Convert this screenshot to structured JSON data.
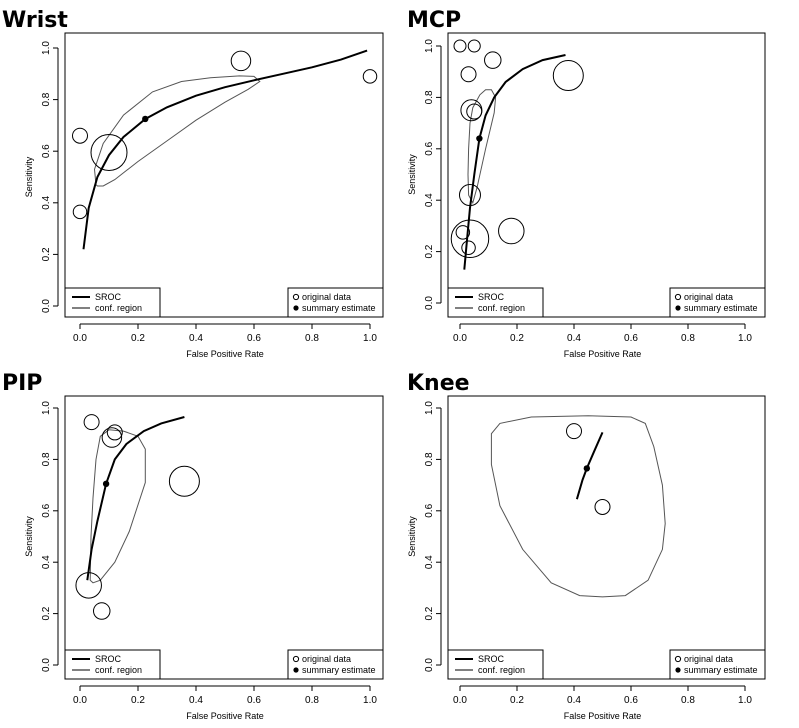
{
  "figure": {
    "xlabel": "False Positive Rate",
    "ylabel": "Sensitivity",
    "xticks": [
      "0.0",
      "0.2",
      "0.4",
      "0.6",
      "0.8",
      "1.0"
    ],
    "yticks": [
      "0.0",
      "0.2",
      "0.4",
      "0.6",
      "0.8",
      "1.0"
    ],
    "legend_left": [
      {
        "label": "SROC",
        "style": "thick-line"
      },
      {
        "label": "conf. region",
        "style": "thin-line"
      }
    ],
    "legend_right": [
      {
        "label": "original data",
        "style": "open-circle"
      },
      {
        "label": "summary estimate",
        "style": "filled-circle"
      }
    ],
    "line_color": "#000000",
    "region_color": "#555555"
  },
  "chart_data": [
    {
      "type": "scatter",
      "title": "Wrist",
      "xlim": [
        0,
        1
      ],
      "ylim": [
        0,
        1
      ],
      "original_data": [
        {
          "x": 0.0,
          "y": 0.66,
          "weight": 1.0
        },
        {
          "x": 0.0,
          "y": 0.365,
          "weight": 0.9
        },
        {
          "x": 0.1,
          "y": 0.595,
          "weight": 2.4
        },
        {
          "x": 0.555,
          "y": 0.95,
          "weight": 1.3
        },
        {
          "x": 1.0,
          "y": 0.89,
          "weight": 0.9
        }
      ],
      "summary_estimate": {
        "x": 0.225,
        "y": 0.725
      },
      "sroc": [
        [
          0.012,
          0.22
        ],
        [
          0.03,
          0.38
        ],
        [
          0.06,
          0.5
        ],
        [
          0.1,
          0.585
        ],
        [
          0.15,
          0.655
        ],
        [
          0.225,
          0.725
        ],
        [
          0.3,
          0.77
        ],
        [
          0.4,
          0.815
        ],
        [
          0.5,
          0.848
        ],
        [
          0.6,
          0.875
        ],
        [
          0.7,
          0.9
        ],
        [
          0.8,
          0.925
        ],
        [
          0.9,
          0.955
        ],
        [
          0.99,
          0.99
        ]
      ],
      "confidence_region": [
        [
          0.055,
          0.47
        ],
        [
          0.05,
          0.53
        ],
        [
          0.08,
          0.63
        ],
        [
          0.15,
          0.74
        ],
        [
          0.25,
          0.83
        ],
        [
          0.35,
          0.87
        ],
        [
          0.45,
          0.885
        ],
        [
          0.55,
          0.892
        ],
        [
          0.6,
          0.89
        ],
        [
          0.62,
          0.87
        ],
        [
          0.58,
          0.84
        ],
        [
          0.5,
          0.79
        ],
        [
          0.4,
          0.72
        ],
        [
          0.3,
          0.64
        ],
        [
          0.2,
          0.56
        ],
        [
          0.12,
          0.49
        ],
        [
          0.08,
          0.465
        ],
        [
          0.06,
          0.465
        ]
      ]
    },
    {
      "type": "scatter",
      "title": "MCP",
      "xlim": [
        0,
        1
      ],
      "ylim": [
        0,
        1
      ],
      "original_data": [
        {
          "x": 0.0,
          "y": 1.0,
          "weight": 0.8
        },
        {
          "x": 0.05,
          "y": 1.0,
          "weight": 0.8
        },
        {
          "x": 0.03,
          "y": 0.89,
          "weight": 1.0
        },
        {
          "x": 0.115,
          "y": 0.945,
          "weight": 1.1
        },
        {
          "x": 0.04,
          "y": 0.75,
          "weight": 1.4
        },
        {
          "x": 0.05,
          "y": 0.745,
          "weight": 1.0
        },
        {
          "x": 0.035,
          "y": 0.42,
          "weight": 1.4
        },
        {
          "x": 0.01,
          "y": 0.275,
          "weight": 0.9
        },
        {
          "x": 0.035,
          "y": 0.25,
          "weight": 2.5
        },
        {
          "x": 0.18,
          "y": 0.28,
          "weight": 1.7
        },
        {
          "x": 0.03,
          "y": 0.215,
          "weight": 0.9
        },
        {
          "x": 0.38,
          "y": 0.885,
          "weight": 2.0
        }
      ],
      "summary_estimate": {
        "x": 0.068,
        "y": 0.64
      },
      "sroc": [
        [
          0.015,
          0.13
        ],
        [
          0.025,
          0.25
        ],
        [
          0.035,
          0.37
        ],
        [
          0.05,
          0.5
        ],
        [
          0.068,
          0.64
        ],
        [
          0.09,
          0.73
        ],
        [
          0.12,
          0.8
        ],
        [
          0.16,
          0.86
        ],
        [
          0.22,
          0.91
        ],
        [
          0.29,
          0.945
        ],
        [
          0.37,
          0.965
        ]
      ],
      "confidence_region": [
        [
          0.03,
          0.42
        ],
        [
          0.045,
          0.39
        ],
        [
          0.06,
          0.45
        ],
        [
          0.09,
          0.6
        ],
        [
          0.12,
          0.74
        ],
        [
          0.125,
          0.8
        ],
        [
          0.11,
          0.83
        ],
        [
          0.09,
          0.83
        ],
        [
          0.07,
          0.81
        ],
        [
          0.045,
          0.76
        ],
        [
          0.035,
          0.7
        ],
        [
          0.03,
          0.6
        ],
        [
          0.028,
          0.5
        ]
      ]
    },
    {
      "type": "scatter",
      "title": "PIP",
      "xlim": [
        0,
        1
      ],
      "ylim": [
        0,
        1
      ],
      "original_data": [
        {
          "x": 0.04,
          "y": 0.945,
          "weight": 1.0
        },
        {
          "x": 0.11,
          "y": 0.885,
          "weight": 1.3
        },
        {
          "x": 0.12,
          "y": 0.905,
          "weight": 1.0
        },
        {
          "x": 0.36,
          "y": 0.715,
          "weight": 2.0
        },
        {
          "x": 0.03,
          "y": 0.31,
          "weight": 1.7
        },
        {
          "x": 0.075,
          "y": 0.21,
          "weight": 1.1
        }
      ],
      "summary_estimate": {
        "x": 0.09,
        "y": 0.705
      },
      "sroc": [
        [
          0.025,
          0.33
        ],
        [
          0.04,
          0.45
        ],
        [
          0.06,
          0.56
        ],
        [
          0.09,
          0.705
        ],
        [
          0.12,
          0.8
        ],
        [
          0.16,
          0.86
        ],
        [
          0.22,
          0.91
        ],
        [
          0.28,
          0.94
        ],
        [
          0.36,
          0.965
        ]
      ],
      "confidence_region": [
        [
          0.035,
          0.33
        ],
        [
          0.045,
          0.32
        ],
        [
          0.07,
          0.33
        ],
        [
          0.12,
          0.4
        ],
        [
          0.17,
          0.52
        ],
        [
          0.225,
          0.71
        ],
        [
          0.225,
          0.84
        ],
        [
          0.2,
          0.89
        ],
        [
          0.15,
          0.91
        ],
        [
          0.1,
          0.915
        ],
        [
          0.07,
          0.89
        ],
        [
          0.055,
          0.8
        ],
        [
          0.045,
          0.65
        ],
        [
          0.038,
          0.5
        ]
      ]
    },
    {
      "type": "scatter",
      "title": "Knee",
      "xlim": [
        0,
        1
      ],
      "ylim": [
        0,
        1
      ],
      "original_data": [
        {
          "x": 0.4,
          "y": 0.91,
          "weight": 1.0
        },
        {
          "x": 0.5,
          "y": 0.615,
          "weight": 1.0
        }
      ],
      "summary_estimate": {
        "x": 0.445,
        "y": 0.765
      },
      "sroc": [
        [
          0.41,
          0.645
        ],
        [
          0.43,
          0.72
        ],
        [
          0.445,
          0.765
        ],
        [
          0.47,
          0.83
        ],
        [
          0.5,
          0.905
        ]
      ],
      "confidence_region": [
        [
          0.5,
          0.265
        ],
        [
          0.58,
          0.27
        ],
        [
          0.66,
          0.33
        ],
        [
          0.71,
          0.45
        ],
        [
          0.72,
          0.55
        ],
        [
          0.71,
          0.7
        ],
        [
          0.68,
          0.85
        ],
        [
          0.65,
          0.94
        ],
        [
          0.6,
          0.965
        ],
        [
          0.45,
          0.97
        ],
        [
          0.25,
          0.965
        ],
        [
          0.14,
          0.94
        ],
        [
          0.11,
          0.9
        ],
        [
          0.11,
          0.78
        ],
        [
          0.14,
          0.62
        ],
        [
          0.22,
          0.45
        ],
        [
          0.32,
          0.32
        ],
        [
          0.42,
          0.27
        ]
      ]
    }
  ]
}
